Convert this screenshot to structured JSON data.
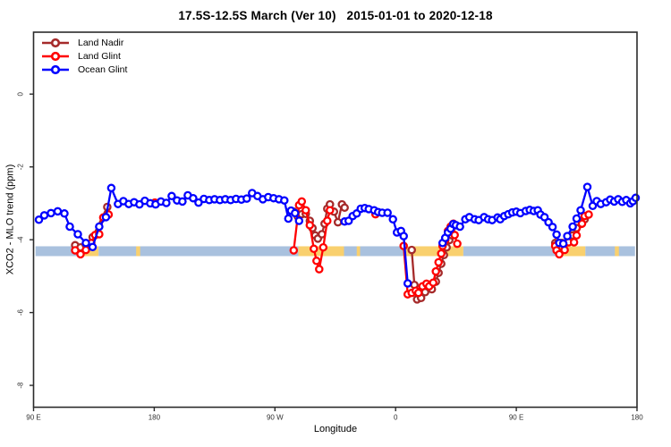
{
  "title": "17.5S-12.5S March (Ver 10)   2015-01-01 to 2020-12-18",
  "chart_data": {
    "type": "line",
    "title": "17.5S-12.5S March (Ver 10)   2015-01-01 to 2020-12-18",
    "xlabel": "Longitude",
    "ylabel": "XCO2 - MLO trend (ppm)",
    "grid": false,
    "legend_position": "top-left-inside",
    "x_axis": {
      "range": [
        90,
        540
      ],
      "note": "longitude axis wraps eastward from 90E through 180, 90W, 0, back to 180",
      "ticks": [
        {
          "value": 90,
          "label": "90 E"
        },
        {
          "value": 180,
          "label": "180"
        },
        {
          "value": 270,
          "label": "90 W"
        },
        {
          "value": 360,
          "label": "0"
        },
        {
          "value": 450,
          "label": "90 E"
        },
        {
          "value": 540,
          "label": "180"
        }
      ]
    },
    "y_axis": {
      "range": [
        -8.6,
        1.7
      ],
      "ticks": [
        {
          "value": 0,
          "label": "0"
        },
        {
          "value": -2,
          "label": "-2"
        },
        {
          "value": -4,
          "label": "-4"
        },
        {
          "value": -6,
          "label": "-6"
        },
        {
          "value": -8,
          "label": "-8"
        }
      ]
    },
    "legend": [
      {
        "name": "Land Nadir",
        "color": "#A52A2A"
      },
      {
        "name": "Land Glint",
        "color": "#FF0000"
      },
      {
        "name": "Ocean Glint",
        "color": "#0000FF"
      }
    ],
    "highlight_band": {
      "ppm_top": -4.18,
      "ppm_bottom": -4.45,
      "segments": [
        {
          "color": "#A9C1DE",
          "from": 91.5,
          "to": 125.5
        },
        {
          "color": "#F9D06E",
          "from": 125.5,
          "to": 138.5
        },
        {
          "color": "#A9C1DE",
          "from": 138.5,
          "to": 287.5
        },
        {
          "color": "#F9D06E",
          "from": 287.5,
          "to": 321.5
        },
        {
          "color": "#A9C1DE",
          "from": 321.5,
          "to": 367
        },
        {
          "color": "#F9D06E",
          "from": 367,
          "to": 410.5
        },
        {
          "color": "#A9C1DE",
          "from": 410.5,
          "to": 481.5
        },
        {
          "color": "#F9D06E",
          "from": 481.5,
          "to": 501.5
        },
        {
          "color": "#A9C1DE",
          "from": 501.5,
          "to": 538.5
        },
        {
          "color": "#F9D06E",
          "from": 166.5,
          "to": 169.5
        },
        {
          "color": "#F9D06E",
          "from": 331,
          "to": 333.5
        },
        {
          "color": "#F9D06E",
          "from": 523.5,
          "to": 526.5
        }
      ]
    },
    "series": [
      {
        "name": "Land Nadir",
        "color": "#A52A2A",
        "segments": [
          [
            [
              121,
              -4.15
            ],
            [
              125,
              -4.21
            ],
            [
              129,
              -4.15
            ],
            [
              134,
              -3.93
            ],
            [
              145,
              -3.1
            ]
          ],
          [
            [
              284,
              -3.23
            ],
            [
              287,
              -3.36
            ],
            [
              290,
              -3.3
            ],
            [
              293,
              -3.29
            ],
            [
              296,
              -3.48
            ],
            [
              298,
              -3.68
            ],
            [
              300,
              -3.88
            ],
            [
              302,
              -3.97
            ],
            [
              305,
              -3.85
            ],
            [
              307,
              -3.56
            ],
            [
              309,
              -3.15
            ],
            [
              311,
              -3.03
            ],
            [
              314,
              -3.23
            ],
            [
              317,
              -3.52
            ],
            [
              320,
              -3.03
            ],
            [
              322,
              -3.12
            ]
          ],
          [
            [
              372,
              -4.28
            ],
            [
              374,
              -5.24
            ],
            [
              376,
              -5.64
            ],
            [
              379,
              -5.6
            ],
            [
              382,
              -5.44
            ],
            [
              387,
              -5.36
            ],
            [
              390,
              -5.15
            ],
            [
              392,
              -4.91
            ],
            [
              394,
              -4.66
            ],
            [
              396,
              -4.42
            ],
            [
              398,
              -4.21
            ],
            [
              400,
              -4.01
            ],
            [
              402,
              -3.88
            ],
            [
              403,
              -3.57
            ]
          ],
          [
            [
              479,
              -4.09
            ],
            [
              481,
              -4.11
            ],
            [
              484,
              -4.09
            ],
            [
              489,
              -3.97
            ],
            [
              492,
              -3.88
            ],
            [
              495,
              -3.68
            ],
            [
              501,
              -3.44
            ]
          ]
        ]
      },
      {
        "name": "Land Glint",
        "color": "#FF0000",
        "segments": [
          [
            [
              121,
              -4.29
            ],
            [
              125,
              -4.4
            ],
            [
              129,
              -4.28
            ],
            [
              133,
              -4.09
            ],
            [
              136,
              -3.87
            ],
            [
              139,
              -3.85
            ],
            [
              142,
              -3.39
            ],
            [
              146,
              -3.31
            ]
          ],
          [
            [
              180.5,
              -2.98
            ]
          ],
          [
            [
              284,
              -4.29
            ],
            [
              288,
              -3.05
            ],
            [
              290,
              -2.95
            ],
            [
              293,
              -3.19
            ],
            [
              296,
              -3.6
            ],
            [
              299,
              -4.25
            ],
            [
              301,
              -4.58
            ],
            [
              303,
              -4.81
            ],
            [
              306,
              -4.21
            ],
            [
              309,
              -3.48
            ],
            [
              311,
              -3.19
            ]
          ],
          [
            [
              345,
              -3.3
            ]
          ],
          [
            [
              366,
              -4.17
            ],
            [
              369,
              -5.5
            ],
            [
              372,
              -5.46
            ],
            [
              375,
              -5.4
            ],
            [
              377,
              -5.46
            ],
            [
              380,
              -5.28
            ],
            [
              383,
              -5.21
            ],
            [
              385,
              -5.28
            ],
            [
              388,
              -5.18
            ],
            [
              390,
              -4.87
            ],
            [
              392,
              -4.62
            ],
            [
              394,
              -4.38
            ],
            [
              395,
              -4.17
            ],
            [
              397,
              -4.01
            ],
            [
              399,
              -3.76
            ],
            [
              401,
              -3.64
            ],
            [
              403,
              -3.56
            ],
            [
              404,
              -3.87
            ],
            [
              406,
              -4.11
            ]
          ],
          [
            [
              479,
              -4.17
            ],
            [
              480,
              -4.29
            ],
            [
              482,
              -4.4
            ],
            [
              486,
              -4.28
            ],
            [
              489,
              -4.07
            ],
            [
              493,
              -4.07
            ],
            [
              495,
              -3.88
            ],
            [
              499,
              -3.56
            ],
            [
              501,
              -3.35
            ],
            [
              504,
              -3.31
            ]
          ]
        ]
      },
      {
        "name": "Ocean Glint",
        "color": "#0000FF",
        "segments": [
          [
            [
              94,
              -3.45
            ],
            [
              98,
              -3.33
            ],
            [
              103,
              -3.27
            ],
            [
              108,
              -3.22
            ],
            [
              113,
              -3.28
            ],
            [
              117,
              -3.64
            ],
            [
              123,
              -3.85
            ],
            [
              129,
              -4.09
            ],
            [
              134,
              -4.2
            ],
            [
              139,
              -3.64
            ],
            [
              144,
              -3.38
            ],
            [
              148,
              -2.58
            ],
            [
              153,
              -3.02
            ],
            [
              157,
              -2.94
            ],
            [
              161,
              -3.02
            ],
            [
              165,
              -2.97
            ],
            [
              169,
              -3.03
            ],
            [
              173,
              -2.93
            ],
            [
              177,
              -3.0
            ],
            [
              181,
              -3.03
            ],
            [
              185,
              -2.95
            ],
            [
              189,
              -2.99
            ],
            [
              193,
              -2.8
            ],
            [
              197,
              -2.92
            ],
            [
              201,
              -2.95
            ],
            [
              205,
              -2.78
            ],
            [
              209,
              -2.86
            ],
            [
              213,
              -2.98
            ],
            [
              217,
              -2.88
            ],
            [
              221,
              -2.91
            ],
            [
              225,
              -2.89
            ],
            [
              229,
              -2.91
            ],
            [
              233,
              -2.89
            ],
            [
              237,
              -2.91
            ],
            [
              241,
              -2.88
            ],
            [
              245,
              -2.9
            ],
            [
              249,
              -2.87
            ],
            [
              253,
              -2.72
            ],
            [
              257,
              -2.8
            ],
            [
              261,
              -2.89
            ],
            [
              265,
              -2.83
            ],
            [
              269,
              -2.86
            ],
            [
              273,
              -2.89
            ],
            [
              277,
              -2.92
            ],
            [
              280,
              -3.42
            ],
            [
              282,
              -3.2
            ],
            [
              285,
              -3.27
            ],
            [
              288,
              -3.48
            ]
          ],
          [
            [
              322,
              -3.5
            ],
            [
              325,
              -3.48
            ],
            [
              328,
              -3.35
            ],
            [
              331,
              -3.28
            ],
            [
              334,
              -3.15
            ],
            [
              337,
              -3.13
            ],
            [
              340,
              -3.16
            ],
            [
              344,
              -3.19
            ],
            [
              347,
              -3.24
            ],
            [
              350,
              -3.26
            ],
            [
              354,
              -3.26
            ],
            [
              358,
              -3.44
            ],
            [
              361,
              -3.8
            ],
            [
              364,
              -3.76
            ],
            [
              366,
              -3.9
            ],
            [
              369,
              -5.2
            ]
          ],
          [
            [
              395,
              -4.09
            ],
            [
              397,
              -3.95
            ],
            [
              399,
              -3.8
            ],
            [
              401,
              -3.7
            ],
            [
              403,
              -3.57
            ],
            [
              405,
              -3.6
            ],
            [
              408,
              -3.64
            ],
            [
              412,
              -3.44
            ],
            [
              415,
              -3.38
            ],
            [
              419,
              -3.44
            ],
            [
              422,
              -3.46
            ],
            [
              426,
              -3.38
            ],
            [
              429,
              -3.44
            ],
            [
              432,
              -3.46
            ],
            [
              436,
              -3.39
            ],
            [
              438,
              -3.44
            ],
            [
              441,
              -3.35
            ],
            [
              444,
              -3.3
            ],
            [
              447,
              -3.25
            ],
            [
              450,
              -3.23
            ],
            [
              453,
              -3.27
            ],
            [
              457,
              -3.21
            ],
            [
              460,
              -3.18
            ],
            [
              463,
              -3.21
            ],
            [
              466,
              -3.19
            ],
            [
              468,
              -3.31
            ],
            [
              471,
              -3.38
            ],
            [
              474,
              -3.52
            ],
            [
              477,
              -3.65
            ],
            [
              480,
              -3.86
            ],
            [
              482,
              -4.09
            ],
            [
              485,
              -4.11
            ],
            [
              488,
              -3.9
            ],
            [
              492,
              -3.64
            ],
            [
              495,
              -3.42
            ],
            [
              498,
              -3.19
            ],
            [
              503,
              -2.55
            ],
            [
              507,
              -3.07
            ],
            [
              510,
              -2.94
            ],
            [
              513,
              -3.02
            ],
            [
              517,
              -2.97
            ],
            [
              520,
              -2.9
            ],
            [
              523,
              -2.95
            ],
            [
              526,
              -2.89
            ],
            [
              529,
              -2.96
            ],
            [
              532,
              -2.91
            ],
            [
              535,
              -3.0
            ],
            [
              537,
              -2.94
            ],
            [
              539,
              -2.85
            ]
          ]
        ]
      }
    ]
  }
}
